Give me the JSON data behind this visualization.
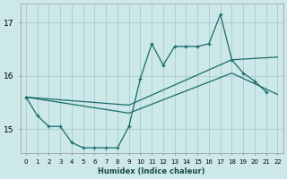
{
  "background_color": "#cce8e8",
  "grid_color": "#aacccc",
  "line_color": "#1a6b6b",
  "xlabel": "Humidex (Indice chaleur)",
  "xlim": [
    -0.5,
    22.5
  ],
  "ylim": [
    14.55,
    17.35
  ],
  "yticks": [
    15,
    16,
    17
  ],
  "xtick_labels": [
    "0",
    "1",
    "2",
    "3",
    "4",
    "5",
    "6",
    "7",
    "8",
    "9",
    "10",
    "11",
    "12",
    "13",
    "14",
    "15",
    "16",
    "17",
    "18",
    "19",
    "20",
    "21",
    "22"
  ],
  "main_x": [
    0,
    1,
    2,
    3,
    4,
    5,
    6,
    7,
    8,
    9,
    10,
    11,
    12,
    13,
    14,
    15,
    16,
    17,
    18,
    19,
    20,
    21,
    22
  ],
  "main_y": [
    15.6,
    15.25,
    15.05,
    15.05,
    14.75,
    14.65,
    14.65,
    14.65,
    14.65,
    15.05,
    15.95,
    16.6,
    16.2,
    16.55,
    16.55,
    16.55,
    16.6,
    17.15,
    16.3,
    16.05,
    15.9,
    15.7,
    null
  ],
  "trend1_x": [
    0,
    9,
    18,
    22
  ],
  "trend1_y": [
    15.6,
    15.45,
    16.3,
    16.35
  ],
  "trend2_x": [
    0,
    9,
    18,
    22
  ],
  "trend2_y": [
    15.6,
    15.3,
    16.05,
    15.65
  ],
  "marker_x": [
    0,
    1,
    2,
    3,
    4,
    5,
    6,
    7,
    8,
    9,
    10,
    11,
    12,
    13,
    14,
    15,
    16,
    17,
    18,
    19,
    20,
    21
  ],
  "marker_y": [
    15.6,
    15.25,
    15.05,
    15.05,
    14.75,
    14.65,
    14.65,
    14.65,
    14.65,
    15.05,
    15.95,
    16.6,
    16.2,
    16.55,
    16.55,
    16.55,
    16.6,
    17.15,
    16.3,
    16.05,
    15.9,
    15.7
  ]
}
